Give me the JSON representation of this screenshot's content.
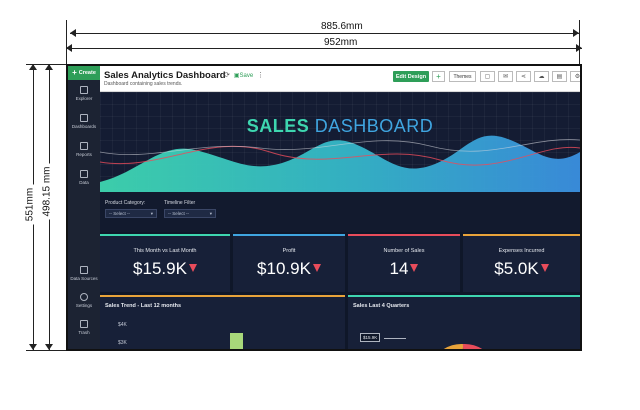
{
  "annotations": {
    "width_top": "885.6mm",
    "width_outer": "952mm",
    "height_outer": "551mm",
    "height_inner": "498.15 mm"
  },
  "sidebar": {
    "create_label": "Create",
    "items": [
      {
        "label": "Explorer",
        "icon": "explorer-icon"
      },
      {
        "label": "Dashboards",
        "icon": "dashboards-icon"
      },
      {
        "label": "Reports",
        "icon": "reports-icon"
      },
      {
        "label": "Data",
        "icon": "data-icon"
      },
      {
        "label": "Data Sources",
        "icon": "data-sources-icon"
      },
      {
        "label": "Settings",
        "icon": "settings-icon"
      },
      {
        "label": "Trash",
        "icon": "trash-icon"
      }
    ]
  },
  "header": {
    "title": "Sales Analytics Dashboard",
    "subtitle": "Dashboard containing sales trends.",
    "save_label": "Save",
    "edit_label": "Edit Design",
    "add_label": "+",
    "themes_label": "Themes"
  },
  "banner": {
    "title_part1": "SALES",
    "title_part2": "DASHBOARD"
  },
  "filters": [
    {
      "label": "Product Category:",
      "value": "-- Select --"
    },
    {
      "label": "Timeline Filter",
      "value": "-- Select --"
    }
  ],
  "kpis": [
    {
      "label": "This Month vs Last Month",
      "value": "$15.9K"
    },
    {
      "label": "Profit",
      "value": "$10.9K"
    },
    {
      "label": "Number of Sales",
      "value": "14"
    },
    {
      "label": "Expenses Incurred",
      "value": "$5.0K"
    }
  ],
  "panels": {
    "trend_title": "Sales Trend - Last 12 months",
    "trend_ticks": [
      "$4K",
      "$3K"
    ],
    "quarters_title": "Sales Last 4 Quarters",
    "quarters_tip": "$15.9K"
  },
  "colors": {
    "accent": "#2e9e58",
    "teal": "#3ed6b0",
    "blue": "#3fa5e0",
    "down": "#e84c5b",
    "panel_accent": "#e8a33a"
  }
}
